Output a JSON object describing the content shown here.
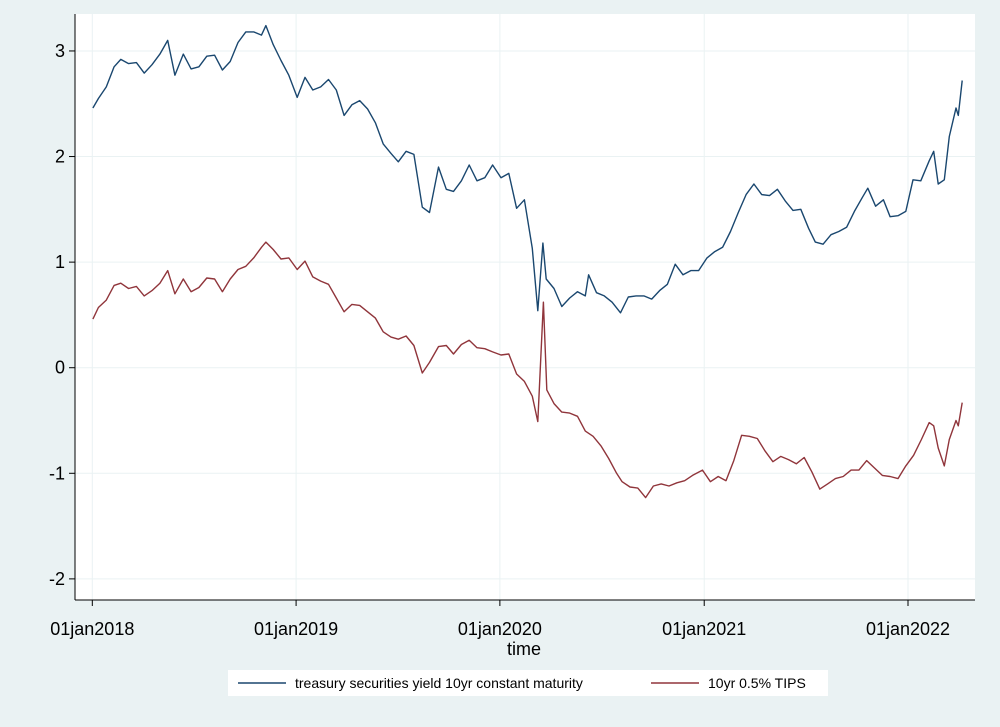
{
  "chart_data": {
    "type": "line",
    "title": "",
    "xlabel": "time",
    "ylabel": "",
    "xlim": [
      "2017-12-01",
      "2022-05-01"
    ],
    "ylim": [
      -2.2,
      3.35
    ],
    "x_ticks": [
      "2018-01-01",
      "2019-01-01",
      "2020-01-01",
      "2021-01-01",
      "2022-01-01"
    ],
    "x_tick_labels": [
      "01jan2018",
      "01jan2019",
      "01jan2020",
      "01jan2021",
      "01jan2022"
    ],
    "y_ticks": [
      -2,
      -1,
      0,
      1,
      2,
      3
    ],
    "y_tick_labels": [
      "-2",
      "-1",
      "0",
      "1",
      "2",
      "3"
    ],
    "grid": true,
    "legend_position": "bottom",
    "colors": {
      "background": "#eaf2f3",
      "plot_background": "#ffffff",
      "grid": "#eaf2f3"
    },
    "series": [
      {
        "name": "treasury securities yield 10yr constant maturity",
        "color": "#1a476f",
        "points": [
          [
            "2018-01-02",
            2.46
          ],
          [
            "2018-01-12",
            2.55
          ],
          [
            "2018-01-26",
            2.66
          ],
          [
            "2018-02-09",
            2.85
          ],
          [
            "2018-02-21",
            2.92
          ],
          [
            "2018-03-07",
            2.88
          ],
          [
            "2018-03-21",
            2.89
          ],
          [
            "2018-04-04",
            2.79
          ],
          [
            "2018-04-18",
            2.87
          ],
          [
            "2018-05-02",
            2.97
          ],
          [
            "2018-05-16",
            3.1
          ],
          [
            "2018-05-29",
            2.77
          ],
          [
            "2018-06-13",
            2.97
          ],
          [
            "2018-06-27",
            2.83
          ],
          [
            "2018-07-11",
            2.85
          ],
          [
            "2018-07-25",
            2.95
          ],
          [
            "2018-08-08",
            2.96
          ],
          [
            "2018-08-22",
            2.82
          ],
          [
            "2018-09-05",
            2.9
          ],
          [
            "2018-09-19",
            3.08
          ],
          [
            "2018-10-03",
            3.18
          ],
          [
            "2018-10-17",
            3.18
          ],
          [
            "2018-10-31",
            3.15
          ],
          [
            "2018-11-08",
            3.24
          ],
          [
            "2018-11-21",
            3.06
          ],
          [
            "2018-12-05",
            2.91
          ],
          [
            "2018-12-19",
            2.77
          ],
          [
            "2019-01-03",
            2.56
          ],
          [
            "2019-01-17",
            2.75
          ],
          [
            "2019-01-31",
            2.63
          ],
          [
            "2019-02-14",
            2.66
          ],
          [
            "2019-02-28",
            2.73
          ],
          [
            "2019-03-14",
            2.63
          ],
          [
            "2019-03-28",
            2.39
          ],
          [
            "2019-04-11",
            2.49
          ],
          [
            "2019-04-25",
            2.53
          ],
          [
            "2019-05-09",
            2.45
          ],
          [
            "2019-05-23",
            2.32
          ],
          [
            "2019-06-06",
            2.12
          ],
          [
            "2019-06-20",
            2.03
          ],
          [
            "2019-07-03",
            1.95
          ],
          [
            "2019-07-17",
            2.05
          ],
          [
            "2019-07-31",
            2.02
          ],
          [
            "2019-08-15",
            1.52
          ],
          [
            "2019-08-28",
            1.47
          ],
          [
            "2019-09-13",
            1.9
          ],
          [
            "2019-09-27",
            1.69
          ],
          [
            "2019-10-10",
            1.67
          ],
          [
            "2019-10-24",
            1.77
          ],
          [
            "2019-11-07",
            1.92
          ],
          [
            "2019-11-21",
            1.77
          ],
          [
            "2019-12-05",
            1.8
          ],
          [
            "2019-12-19",
            1.92
          ],
          [
            "2020-01-03",
            1.8
          ],
          [
            "2020-01-17",
            1.84
          ],
          [
            "2020-01-31",
            1.51
          ],
          [
            "2020-02-14",
            1.59
          ],
          [
            "2020-02-28",
            1.13
          ],
          [
            "2020-03-09",
            0.54
          ],
          [
            "2020-03-18",
            1.18
          ],
          [
            "2020-03-24",
            0.84
          ],
          [
            "2020-04-07",
            0.75
          ],
          [
            "2020-04-21",
            0.58
          ],
          [
            "2020-05-05",
            0.66
          ],
          [
            "2020-05-19",
            0.72
          ],
          [
            "2020-06-02",
            0.68
          ],
          [
            "2020-06-08",
            0.88
          ],
          [
            "2020-06-22",
            0.71
          ],
          [
            "2020-07-06",
            0.68
          ],
          [
            "2020-07-20",
            0.62
          ],
          [
            "2020-08-04",
            0.52
          ],
          [
            "2020-08-18",
            0.67
          ],
          [
            "2020-09-01",
            0.68
          ],
          [
            "2020-09-15",
            0.68
          ],
          [
            "2020-09-29",
            0.65
          ],
          [
            "2020-10-13",
            0.73
          ],
          [
            "2020-10-27",
            0.79
          ],
          [
            "2020-11-10",
            0.98
          ],
          [
            "2020-11-24",
            0.88
          ],
          [
            "2020-12-08",
            0.92
          ],
          [
            "2020-12-22",
            0.92
          ],
          [
            "2021-01-06",
            1.04
          ],
          [
            "2021-01-20",
            1.1
          ],
          [
            "2021-02-03",
            1.14
          ],
          [
            "2021-02-17",
            1.29
          ],
          [
            "2021-03-03",
            1.47
          ],
          [
            "2021-03-17",
            1.64
          ],
          [
            "2021-03-31",
            1.74
          ],
          [
            "2021-04-14",
            1.64
          ],
          [
            "2021-04-28",
            1.63
          ],
          [
            "2021-05-12",
            1.69
          ],
          [
            "2021-05-26",
            1.58
          ],
          [
            "2021-06-09",
            1.49
          ],
          [
            "2021-06-23",
            1.5
          ],
          [
            "2021-07-07",
            1.32
          ],
          [
            "2021-07-19",
            1.19
          ],
          [
            "2021-08-02",
            1.17
          ],
          [
            "2021-08-16",
            1.26
          ],
          [
            "2021-08-30",
            1.29
          ],
          [
            "2021-09-13",
            1.33
          ],
          [
            "2021-09-27",
            1.48
          ],
          [
            "2021-10-11",
            1.61
          ],
          [
            "2021-10-21",
            1.7
          ],
          [
            "2021-11-04",
            1.53
          ],
          [
            "2021-11-18",
            1.59
          ],
          [
            "2021-11-30",
            1.43
          ],
          [
            "2021-12-14",
            1.44
          ],
          [
            "2021-12-28",
            1.48
          ],
          [
            "2022-01-10",
            1.78
          ],
          [
            "2022-01-24",
            1.77
          ],
          [
            "2022-02-08",
            1.96
          ],
          [
            "2022-02-16",
            2.05
          ],
          [
            "2022-02-24",
            1.74
          ],
          [
            "2022-03-07",
            1.78
          ],
          [
            "2022-03-16",
            2.19
          ],
          [
            "2022-03-28",
            2.46
          ],
          [
            "2022-04-01",
            2.39
          ],
          [
            "2022-04-08",
            2.72
          ]
        ]
      },
      {
        "name": "10yr 0.5% TIPS",
        "color": "#90353b",
        "points": [
          [
            "2018-01-02",
            0.46
          ],
          [
            "2018-01-12",
            0.57
          ],
          [
            "2018-01-26",
            0.64
          ],
          [
            "2018-02-09",
            0.78
          ],
          [
            "2018-02-21",
            0.8
          ],
          [
            "2018-03-07",
            0.75
          ],
          [
            "2018-03-21",
            0.77
          ],
          [
            "2018-04-04",
            0.68
          ],
          [
            "2018-04-18",
            0.73
          ],
          [
            "2018-05-02",
            0.8
          ],
          [
            "2018-05-16",
            0.92
          ],
          [
            "2018-05-29",
            0.7
          ],
          [
            "2018-06-13",
            0.84
          ],
          [
            "2018-06-27",
            0.72
          ],
          [
            "2018-07-11",
            0.76
          ],
          [
            "2018-07-25",
            0.85
          ],
          [
            "2018-08-08",
            0.84
          ],
          [
            "2018-08-22",
            0.72
          ],
          [
            "2018-09-05",
            0.84
          ],
          [
            "2018-09-19",
            0.93
          ],
          [
            "2018-10-03",
            0.96
          ],
          [
            "2018-10-17",
            1.04
          ],
          [
            "2018-10-31",
            1.14
          ],
          [
            "2018-11-08",
            1.19
          ],
          [
            "2018-11-21",
            1.12
          ],
          [
            "2018-12-05",
            1.03
          ],
          [
            "2018-12-19",
            1.04
          ],
          [
            "2019-01-03",
            0.93
          ],
          [
            "2019-01-17",
            1.01
          ],
          [
            "2019-01-31",
            0.86
          ],
          [
            "2019-02-14",
            0.82
          ],
          [
            "2019-02-28",
            0.79
          ],
          [
            "2019-03-14",
            0.66
          ],
          [
            "2019-03-28",
            0.53
          ],
          [
            "2019-04-11",
            0.6
          ],
          [
            "2019-04-25",
            0.59
          ],
          [
            "2019-05-09",
            0.53
          ],
          [
            "2019-05-23",
            0.47
          ],
          [
            "2019-06-06",
            0.34
          ],
          [
            "2019-06-20",
            0.29
          ],
          [
            "2019-07-03",
            0.27
          ],
          [
            "2019-07-17",
            0.3
          ],
          [
            "2019-07-31",
            0.21
          ],
          [
            "2019-08-15",
            -0.05
          ],
          [
            "2019-08-28",
            0.05
          ],
          [
            "2019-09-13",
            0.2
          ],
          [
            "2019-09-27",
            0.21
          ],
          [
            "2019-10-10",
            0.13
          ],
          [
            "2019-10-24",
            0.22
          ],
          [
            "2019-11-07",
            0.26
          ],
          [
            "2019-11-21",
            0.19
          ],
          [
            "2019-12-05",
            0.18
          ],
          [
            "2019-12-19",
            0.15
          ],
          [
            "2020-01-03",
            0.12
          ],
          [
            "2020-01-17",
            0.13
          ],
          [
            "2020-01-31",
            -0.06
          ],
          [
            "2020-02-14",
            -0.13
          ],
          [
            "2020-02-28",
            -0.27
          ],
          [
            "2020-03-09",
            -0.51
          ],
          [
            "2020-03-19",
            0.62
          ],
          [
            "2020-03-25",
            -0.21
          ],
          [
            "2020-04-07",
            -0.34
          ],
          [
            "2020-04-21",
            -0.42
          ],
          [
            "2020-05-05",
            -0.43
          ],
          [
            "2020-05-19",
            -0.46
          ],
          [
            "2020-06-02",
            -0.6
          ],
          [
            "2020-06-16",
            -0.65
          ],
          [
            "2020-06-30",
            -0.74
          ],
          [
            "2020-07-14",
            -0.86
          ],
          [
            "2020-07-28",
            -1.0
          ],
          [
            "2020-08-07",
            -1.08
          ],
          [
            "2020-08-21",
            -1.13
          ],
          [
            "2020-09-04",
            -1.14
          ],
          [
            "2020-09-18",
            -1.23
          ],
          [
            "2020-10-02",
            -1.12
          ],
          [
            "2020-10-16",
            -1.1
          ],
          [
            "2020-10-30",
            -1.12
          ],
          [
            "2020-11-13",
            -1.09
          ],
          [
            "2020-11-27",
            -1.07
          ],
          [
            "2020-12-11",
            -1.02
          ],
          [
            "2020-12-29",
            -0.97
          ],
          [
            "2021-01-12",
            -1.08
          ],
          [
            "2021-01-26",
            -1.03
          ],
          [
            "2021-02-09",
            -1.07
          ],
          [
            "2021-02-23",
            -0.88
          ],
          [
            "2021-03-09",
            -0.64
          ],
          [
            "2021-03-23",
            -0.65
          ],
          [
            "2021-04-06",
            -0.67
          ],
          [
            "2021-04-20",
            -0.79
          ],
          [
            "2021-05-04",
            -0.89
          ],
          [
            "2021-05-18",
            -0.84
          ],
          [
            "2021-06-01",
            -0.87
          ],
          [
            "2021-06-15",
            -0.91
          ],
          [
            "2021-06-29",
            -0.85
          ],
          [
            "2021-07-13",
            -0.99
          ],
          [
            "2021-07-27",
            -1.15
          ],
          [
            "2021-08-10",
            -1.1
          ],
          [
            "2021-08-24",
            -1.05
          ],
          [
            "2021-09-07",
            -1.03
          ],
          [
            "2021-09-21",
            -0.97
          ],
          [
            "2021-10-05",
            -0.97
          ],
          [
            "2021-10-19",
            -0.88
          ],
          [
            "2021-11-02",
            -0.95
          ],
          [
            "2021-11-16",
            -1.02
          ],
          [
            "2021-11-30",
            -1.03
          ],
          [
            "2021-12-14",
            -1.05
          ],
          [
            "2021-12-28",
            -0.93
          ],
          [
            "2022-01-11",
            -0.83
          ],
          [
            "2022-01-25",
            -0.68
          ],
          [
            "2022-02-08",
            -0.52
          ],
          [
            "2022-02-16",
            -0.55
          ],
          [
            "2022-02-24",
            -0.76
          ],
          [
            "2022-03-07",
            -0.93
          ],
          [
            "2022-03-16",
            -0.68
          ],
          [
            "2022-03-28",
            -0.5
          ],
          [
            "2022-04-01",
            -0.55
          ],
          [
            "2022-04-08",
            -0.33
          ]
        ]
      }
    ]
  }
}
